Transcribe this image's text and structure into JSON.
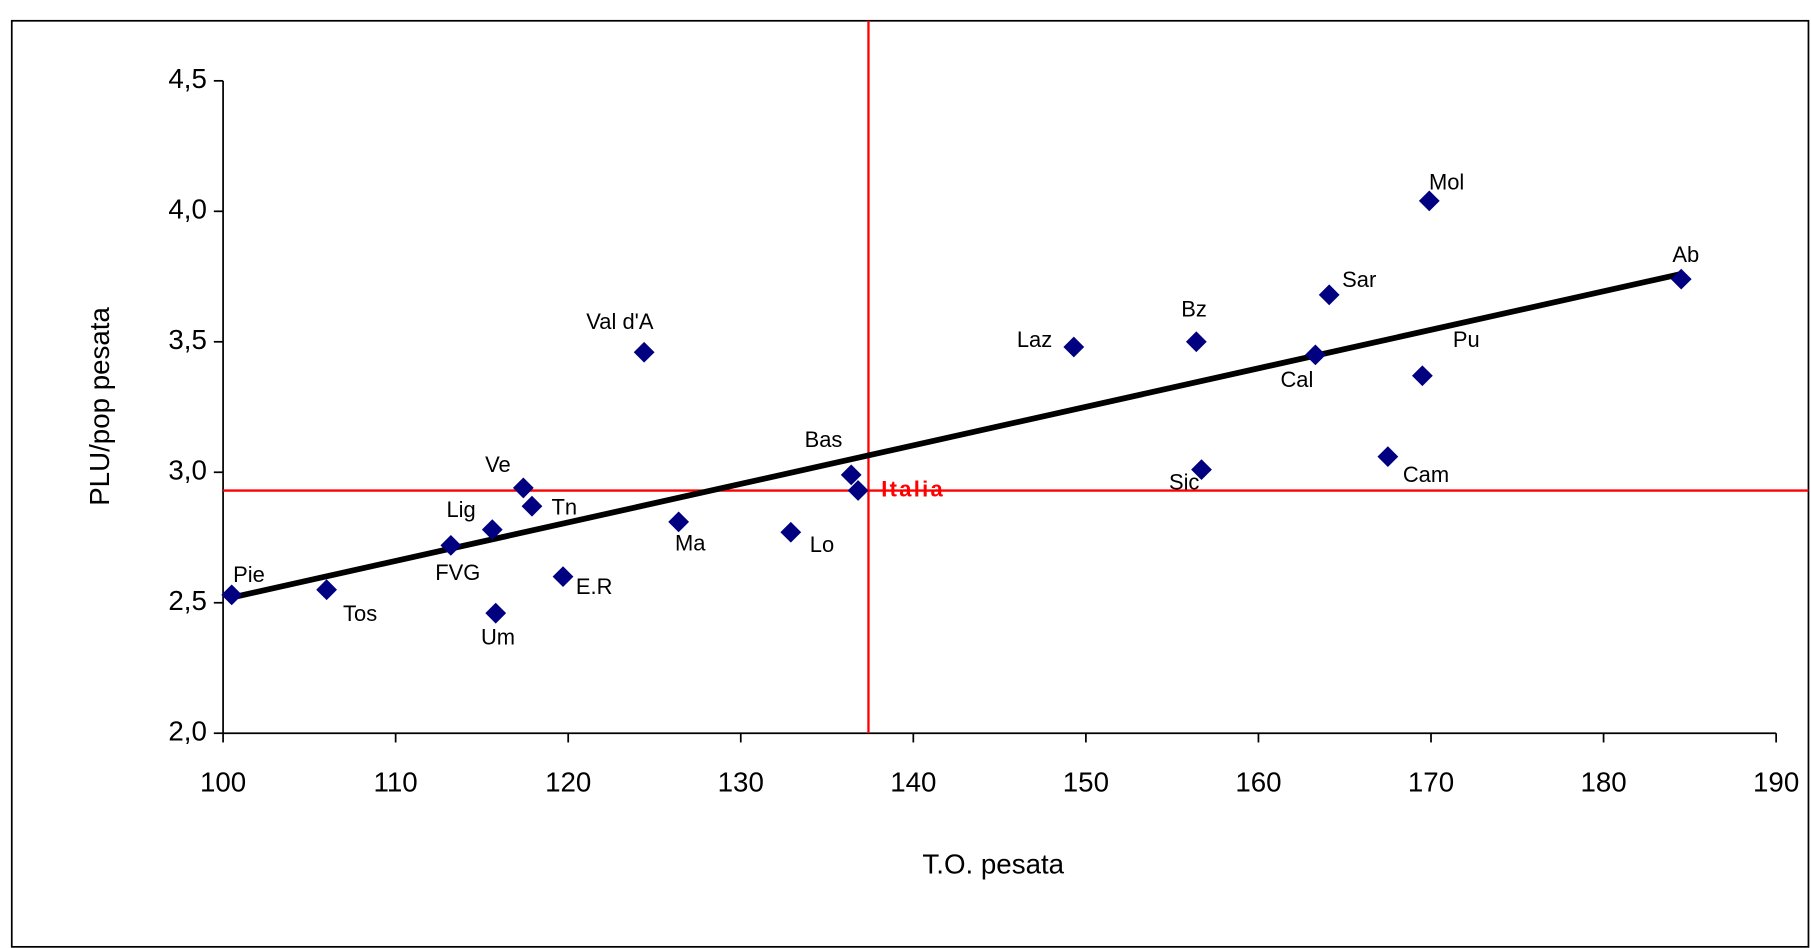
{
  "chart_data": {
    "type": "scatter",
    "x_label": "T.O. pesata",
    "y_label": "PLU/pop pesata",
    "labels": [
      "Pie",
      "Tos",
      "FVG",
      "Lig",
      "Um",
      "Ve",
      "Tn",
      "E.R",
      "Val d'A",
      "Ma",
      "Lo",
      "Bas",
      "Italia",
      "Laz",
      "Bz",
      "Sic",
      "Cal",
      "Sar",
      "Cam",
      "Pu",
      "Mol",
      "Ab"
    ],
    "x": [
      100.5,
      106.0,
      113.2,
      115.6,
      115.8,
      117.4,
      117.9,
      119.7,
      124.4,
      126.4,
      132.9,
      136.4,
      136.8,
      149.3,
      156.4,
      156.7,
      163.3,
      164.1,
      167.5,
      169.5,
      169.9,
      184.5
    ],
    "values": [
      2.53,
      2.55,
      2.72,
      2.78,
      2.46,
      2.94,
      2.87,
      2.6,
      3.46,
      2.81,
      2.77,
      2.99,
      2.93,
      3.48,
      3.5,
      3.01,
      3.45,
      3.68,
      3.06,
      3.37,
      4.04,
      3.74
    ],
    "color": "#000080",
    "trendline": {
      "x": [
        100.5,
        184.5
      ],
      "y": [
        2.52,
        3.76
      ],
      "color": "#000000"
    },
    "reference_x": 137.4,
    "reference_y": 2.93,
    "reference_color": "#ff0000",
    "xlim": [
      100,
      190
    ],
    "xticks": [
      100,
      110,
      120,
      130,
      140,
      150,
      160,
      170,
      180,
      190
    ],
    "ylim": [
      2.0,
      4.5
    ],
    "yticks": [
      {
        "value": 2.0,
        "label": "2,0"
      },
      {
        "value": 2.5,
        "label": "2,5"
      },
      {
        "value": 3.0,
        "label": "3,0"
      },
      {
        "value": 3.5,
        "label": "3,5"
      },
      {
        "value": 4.0,
        "label": "4,0"
      },
      {
        "value": 4.5,
        "label": "4,5"
      }
    ]
  }
}
